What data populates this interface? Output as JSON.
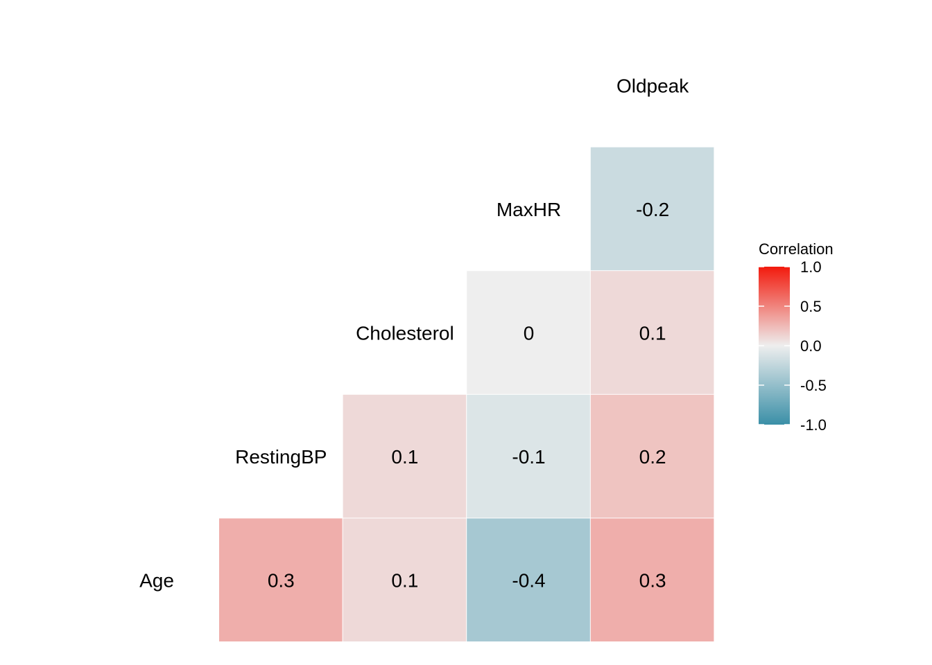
{
  "chart_data": {
    "type": "heatmap",
    "variables": [
      "Age",
      "RestingBP",
      "Cholesterol",
      "MaxHR",
      "Oldpeak"
    ],
    "cells": [
      {
        "row": "Age",
        "col": "RestingBP",
        "value": 0.3,
        "label": "0.3"
      },
      {
        "row": "Age",
        "col": "Cholesterol",
        "value": 0.1,
        "label": "0.1"
      },
      {
        "row": "Age",
        "col": "MaxHR",
        "value": -0.4,
        "label": "-0.4"
      },
      {
        "row": "Age",
        "col": "Oldpeak",
        "value": 0.3,
        "label": "0.3"
      },
      {
        "row": "RestingBP",
        "col": "Cholesterol",
        "value": 0.1,
        "label": "0.1"
      },
      {
        "row": "RestingBP",
        "col": "MaxHR",
        "value": -0.1,
        "label": "-0.1"
      },
      {
        "row": "RestingBP",
        "col": "Oldpeak",
        "value": 0.2,
        "label": "0.2"
      },
      {
        "row": "Cholesterol",
        "col": "MaxHR",
        "value": 0.0,
        "label": "0"
      },
      {
        "row": "Cholesterol",
        "col": "Oldpeak",
        "value": 0.1,
        "label": "0.1"
      },
      {
        "row": "MaxHR",
        "col": "Oldpeak",
        "value": -0.2,
        "label": "-0.2"
      }
    ],
    "legend": {
      "title": "Correlation",
      "ticks": [
        {
          "value": 1.0,
          "label": "1.0"
        },
        {
          "value": 0.5,
          "label": "0.5"
        },
        {
          "value": 0.0,
          "label": "0.0"
        },
        {
          "value": -0.5,
          "label": "-0.5"
        },
        {
          "value": -1.0,
          "label": "-1.0"
        }
      ],
      "range": [
        -1,
        1
      ],
      "colors": {
        "low": "#3A8FA7",
        "mid": "#EEEEEE",
        "high": "#F21A0D"
      },
      "placement": "right"
    }
  }
}
